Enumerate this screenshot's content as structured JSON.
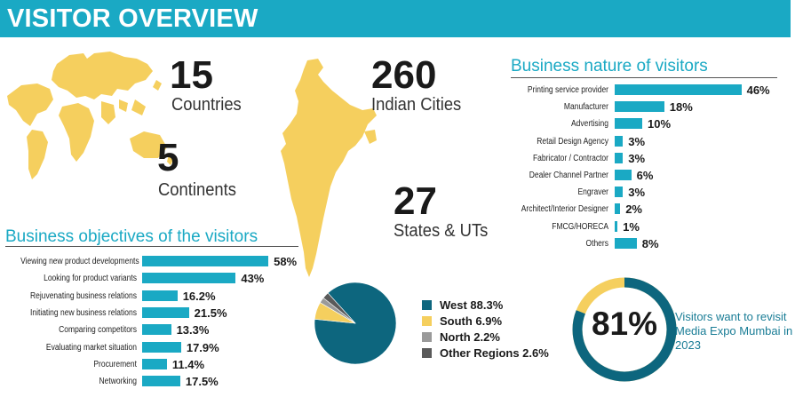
{
  "header": {
    "title": "VISITOR OVERVIEW"
  },
  "colors": {
    "accent": "#1aa9c4",
    "map": "#f5cf5e",
    "west": "#0d667e",
    "south": "#f5cf5e",
    "north": "#9a9a9a",
    "other": "#5a5a5a",
    "track": "#e6e6e6"
  },
  "stats": {
    "countries": {
      "value": "15",
      "label": "Countries"
    },
    "continents": {
      "value": "5",
      "label": "Continents"
    },
    "cities": {
      "value": "260",
      "label": "Indian Cities"
    },
    "states": {
      "value": "27",
      "label": "States & UTs"
    }
  },
  "maps": {
    "world": "world-map",
    "india": "india-map"
  },
  "revisit": {
    "value": "81%",
    "text": "Visitors want to revisit Media Expo Mumbai in 2023"
  },
  "chart_data": [
    {
      "type": "bar",
      "orientation": "horizontal",
      "title": "Business nature of visitors",
      "categories": [
        "Printing service provider",
        "Manufacturer",
        "Advertising",
        "Retail Design Agency",
        "Fabricator / Contractor",
        "Dealer Channel Partner",
        "Engraver",
        "Architect/Interior Designer",
        "FMCG/HORECA",
        "Others"
      ],
      "values": [
        46,
        18,
        10,
        3,
        3,
        6,
        3,
        2,
        1,
        8
      ],
      "value_labels": [
        "46%",
        "18%",
        "10%",
        "3%",
        "3%",
        "6%",
        "3%",
        "2%",
        "1%",
        "8%"
      ]
    },
    {
      "type": "bar",
      "orientation": "horizontal",
      "title": "Business objectives of the visitors",
      "categories": [
        "Viewing new product developments",
        "Looking for product variants",
        "Rejuvenating business relations",
        "Initiating new business relations",
        "Comparing competitors",
        "Evaluating market situation",
        "Procurement",
        "Networking"
      ],
      "values": [
        58,
        43,
        16.2,
        21.5,
        13.3,
        17.9,
        11.4,
        17.5
      ],
      "value_labels": [
        "58%",
        "43%",
        "16.2%",
        "21.5%",
        "13.3%",
        "17.9%",
        "11.4%",
        "17.5%"
      ]
    },
    {
      "type": "pie",
      "categories": [
        "West",
        "South",
        "North",
        "Other Regions"
      ],
      "values": [
        88.3,
        6.9,
        2.2,
        2.6
      ],
      "legend": [
        "West 88.3%",
        "South 6.9%",
        "North 2.2%",
        "Other Regions 2.6%"
      ],
      "legend_position": "right"
    },
    {
      "type": "pie",
      "subtype": "donut",
      "values": [
        81,
        19
      ],
      "center_label": "81%"
    }
  ]
}
